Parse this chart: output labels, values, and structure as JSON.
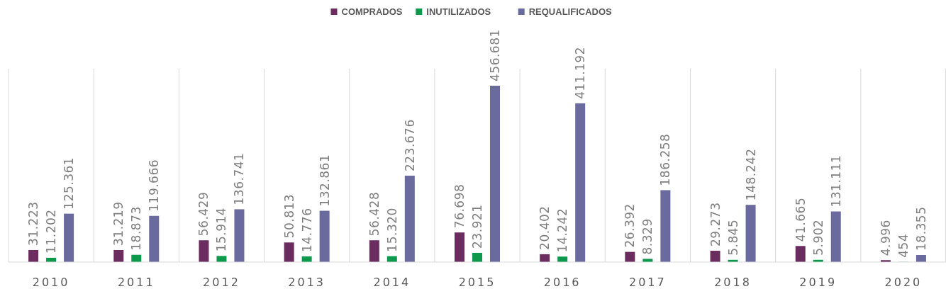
{
  "chart_data": {
    "type": "bar",
    "categories": [
      "2010",
      "2011",
      "2012",
      "2013",
      "2014",
      "2015",
      "2016",
      "2017",
      "2018",
      "2019",
      "2020"
    ],
    "series": [
      {
        "name": "COMPRADOS",
        "color": "#6b2c5f",
        "values": [
          31223,
          31219,
          56429,
          50813,
          56428,
          76698,
          20402,
          26392,
          29273,
          41665,
          4996
        ],
        "value_labels": [
          "31.223",
          "31.219",
          "56.429",
          "50.813",
          "56.428",
          "76.698",
          "20.402",
          "26.392",
          "29.273",
          "41.665",
          "4.996"
        ]
      },
      {
        "name": "INUTILIZADOS",
        "color": "#0b9a4b",
        "values": [
          11202,
          18873,
          15914,
          14776,
          15320,
          23921,
          14242,
          8329,
          5845,
          5902,
          454
        ],
        "value_labels": [
          "11.202",
          "18.873",
          "15.914",
          "14.776",
          "15.320",
          "23.921",
          "14.242",
          "8.329",
          "5.845",
          "5.902",
          "454"
        ]
      },
      {
        "name": "REQUALIFICADOS",
        "color": "#6a6a9e",
        "values": [
          125361,
          119666,
          136741,
          132861,
          223676,
          456681,
          411192,
          186258,
          148242,
          131111,
          18355
        ],
        "value_labels": [
          "125.361",
          "119.666",
          "136.741",
          "132.861",
          "223.676",
          "456.681",
          "411.192",
          "186.258",
          "148.242",
          "131.111",
          "18.355"
        ]
      }
    ],
    "grid": "x",
    "legend": "top"
  }
}
